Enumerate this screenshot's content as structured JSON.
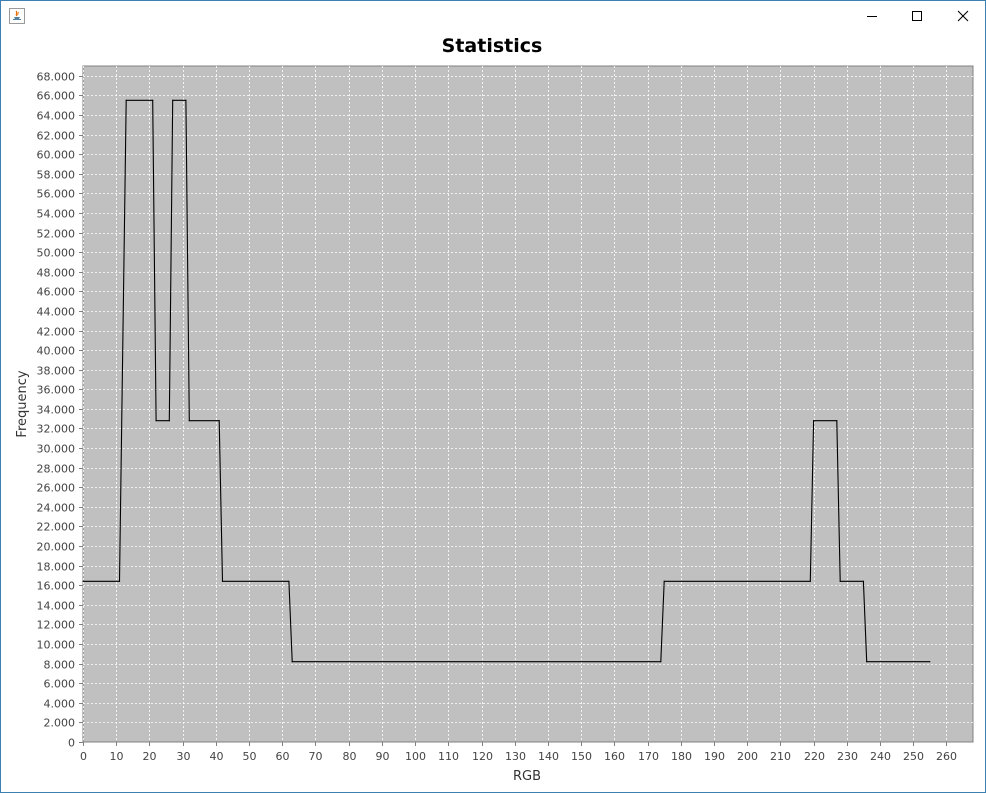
{
  "window": {
    "title": "",
    "controls": [
      "minimize-icon",
      "maximize-icon",
      "close-icon"
    ]
  },
  "chart_data": {
    "type": "line",
    "title": "Statistics",
    "xlabel": "RGB",
    "ylabel": "Frequency",
    "xlim": [
      0,
      268
    ],
    "ylim": [
      0,
      69000
    ],
    "x_ticks": [
      0,
      10,
      20,
      30,
      40,
      50,
      60,
      70,
      80,
      90,
      100,
      110,
      120,
      130,
      140,
      150,
      160,
      170,
      180,
      190,
      200,
      210,
      220,
      230,
      240,
      250,
      260
    ],
    "x_tick_labels": [
      "0",
      "10",
      "20",
      "30",
      "40",
      "50",
      "60",
      "70",
      "80",
      "90",
      "100",
      "110",
      "120",
      "130",
      "140",
      "150",
      "160",
      "170",
      "180",
      "190",
      "200",
      "210",
      "220",
      "230",
      "240",
      "250",
      "260"
    ],
    "y_ticks": [
      0,
      2000,
      4000,
      6000,
      8000,
      10000,
      12000,
      14000,
      16000,
      18000,
      20000,
      22000,
      24000,
      26000,
      28000,
      30000,
      32000,
      34000,
      36000,
      38000,
      40000,
      42000,
      44000,
      46000,
      48000,
      50000,
      52000,
      54000,
      56000,
      58000,
      60000,
      62000,
      64000,
      66000,
      68000
    ],
    "y_tick_labels": [
      "0",
      "2.000",
      "4.000",
      "6.000",
      "8.000",
      "10.000",
      "12.000",
      "14.000",
      "16.000",
      "18.000",
      "20.000",
      "22.000",
      "24.000",
      "26.000",
      "28.000",
      "30.000",
      "32.000",
      "34.000",
      "36.000",
      "38.000",
      "40.000",
      "42.000",
      "44.000",
      "46.000",
      "48.000",
      "50.000",
      "52.000",
      "54.000",
      "56.000",
      "58.000",
      "60.000",
      "62.000",
      "64.000",
      "66.000",
      "68.000"
    ],
    "grid": true,
    "colors": {
      "plot_background": "#c0c0c0",
      "gridline": "#ffffff",
      "line": "#000000",
      "outline": "#808080"
    },
    "series": [
      {
        "x": [
          0,
          11,
          13,
          21,
          22,
          26,
          27,
          31,
          32,
          41,
          42,
          62,
          63,
          174,
          175,
          219,
          220,
          227,
          228,
          235,
          236,
          255
        ],
        "y": [
          16400,
          16400,
          65500,
          65500,
          32800,
          32800,
          65500,
          65500,
          32800,
          32800,
          16400,
          16400,
          8200,
          8200,
          16400,
          16400,
          32800,
          32800,
          16400,
          16400,
          8200,
          8200
        ]
      }
    ]
  }
}
